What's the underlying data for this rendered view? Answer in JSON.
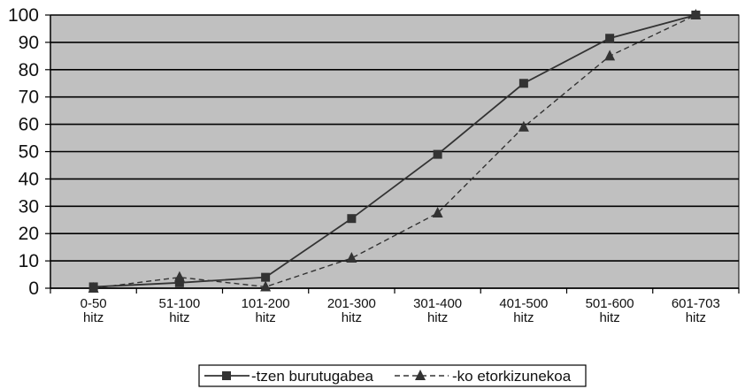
{
  "chart_data": {
    "type": "line",
    "categories": [
      [
        "0-50",
        "hitz"
      ],
      [
        "51-100",
        "hitz"
      ],
      [
        "101-200",
        "hitz"
      ],
      [
        "201-300",
        "hitz"
      ],
      [
        "301-400",
        "hitz"
      ],
      [
        "401-500",
        "hitz"
      ],
      [
        "501-600",
        "hitz"
      ],
      [
        "601-703",
        "hitz"
      ]
    ],
    "series": [
      {
        "name": "-tzen burutugabea",
        "marker": "square",
        "line": "solid",
        "values": [
          0.5,
          2,
          4,
          25.5,
          49,
          75,
          91.5,
          100
        ]
      },
      {
        "name": "-ko etorkizunekoa",
        "marker": "triangle",
        "line": "dashed",
        "values": [
          0,
          4,
          0.5,
          11,
          27.5,
          59,
          85,
          100
        ]
      }
    ],
    "yticks": [
      0,
      10,
      20,
      30,
      40,
      50,
      60,
      70,
      80,
      90,
      100
    ],
    "ylim": [
      0,
      100
    ],
    "grid": true,
    "legend": "bottom",
    "colors": {
      "plot_background": "#c0c0c0",
      "lines": "#333333",
      "gridlines": "#000000"
    }
  }
}
